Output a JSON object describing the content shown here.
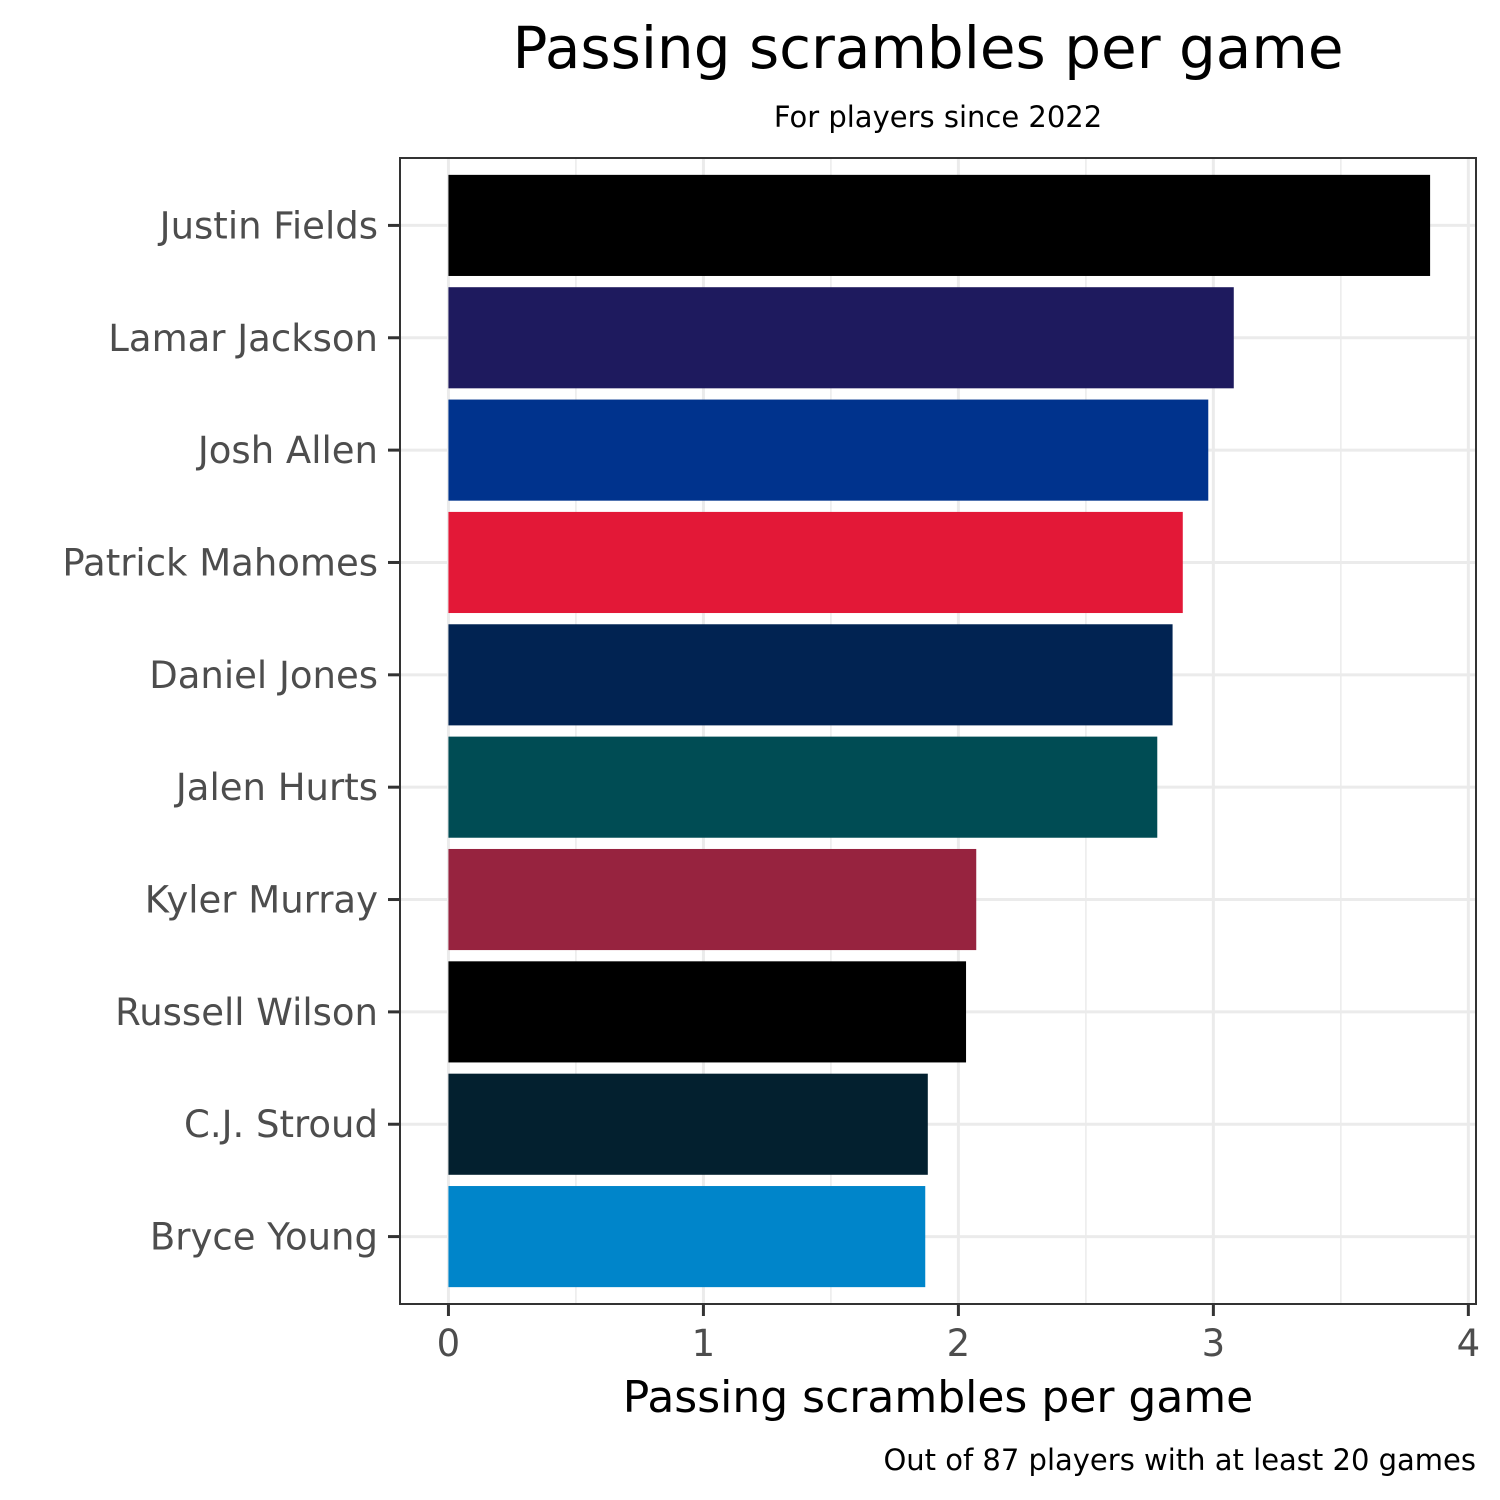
{
  "chart_data": {
    "type": "bar",
    "orientation": "horizontal",
    "title": "Passing scrambles per game",
    "subtitle": "For players since 2022",
    "xlabel": "Passing scrambles per game",
    "ylabel": "",
    "caption": "Out of 87 players with at least 20 games",
    "xlim": [
      -0.19,
      4.03
    ],
    "xticks": [
      0,
      1,
      2,
      3,
      4
    ],
    "grid": true,
    "categories": [
      "Justin Fields",
      "Lamar Jackson",
      "Josh Allen",
      "Patrick Mahomes",
      "Daniel Jones",
      "Jalen Hurts",
      "Kyler Murray",
      "Russell Wilson",
      "C.J. Stroud",
      "Bryce Young"
    ],
    "values": [
      3.85,
      3.08,
      2.98,
      2.88,
      2.84,
      2.78,
      2.07,
      2.03,
      1.88,
      1.87
    ],
    "colors": [
      "#000000",
      "#1e1a5e",
      "#00338d",
      "#e31837",
      "#012352",
      "#004c54",
      "#97233f",
      "#000000",
      "#03202f",
      "#0085ca"
    ]
  }
}
